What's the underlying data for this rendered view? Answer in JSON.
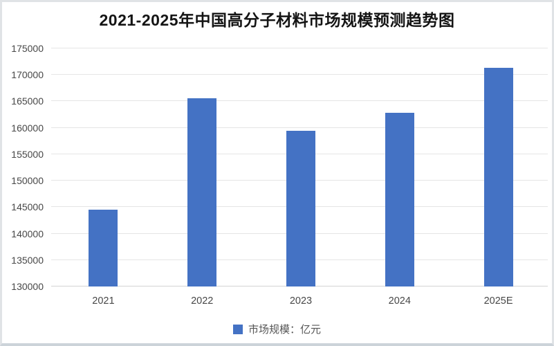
{
  "page": {
    "background_color": "#ffffff",
    "border_color": "#e0e3e6",
    "bottom_border_color": "#ccd3d9"
  },
  "chart_data": {
    "type": "bar",
    "title": "2021-2025年中国高分子材料市场规模预测趋势图",
    "categories": [
      "2021",
      "2022",
      "2023",
      "2024",
      "2025E"
    ],
    "values": [
      144500,
      165600,
      159500,
      162800,
      171300
    ],
    "xlabel": "",
    "ylabel": "",
    "ylim": [
      130000,
      175000
    ],
    "yticks": [
      130000,
      135000,
      140000,
      145000,
      150000,
      155000,
      160000,
      165000,
      170000,
      175000
    ],
    "grid": true,
    "legend_position": "bottom",
    "legend": [
      "市场规模：亿元"
    ],
    "bar_color": "#4472C4",
    "gridline_color": "#e5e5e5",
    "axis_label_color": "#474747",
    "title_color": "#141414"
  }
}
